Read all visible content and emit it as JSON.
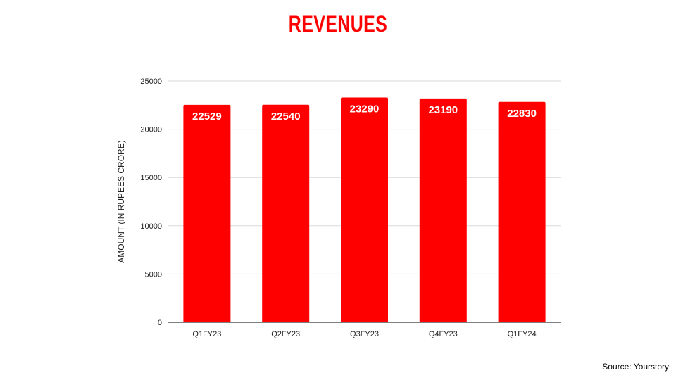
{
  "chart_data": {
    "type": "bar",
    "title": "REVENUES",
    "xlabel": "",
    "ylabel": "AMOUNT (IN RUPEES CRORE)",
    "categories": [
      "Q1FY23",
      "Q2FY23",
      "Q3FY23",
      "Q4FY23",
      "Q1FY24"
    ],
    "values": [
      22529,
      22540,
      23290,
      23190,
      22830
    ],
    "data_labels": [
      "22529",
      "22540",
      "23290",
      "23190",
      "22830"
    ],
    "ylim": [
      0,
      25000
    ],
    "yticks": [
      "0",
      "5000",
      "10000",
      "15000",
      "20000",
      "25000"
    ],
    "grid": true,
    "bar_color": "#ff0000",
    "source": "Source: Yourstory"
  }
}
